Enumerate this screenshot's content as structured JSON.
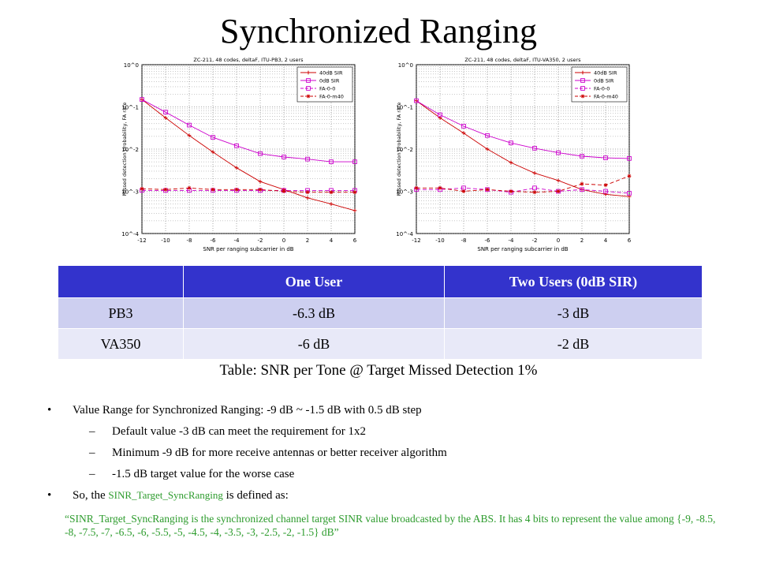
{
  "slide": {
    "title": "Synchronized Ranging"
  },
  "chart_data": [
    {
      "type": "line",
      "title": "ZC-211, 48 codes, deltaF, ITU-PB3, 2 users",
      "xlabel": "SNR per ranging subcarrier in dB",
      "ylabel": "Missed detection probability, FA rate",
      "xlim": [
        -12,
        6
      ],
      "ylim_log10": [
        -4,
        0
      ],
      "x_ticks": [
        "-12",
        "-10",
        "-8",
        "-6",
        "-4",
        "-2",
        "0",
        "2",
        "4",
        "6"
      ],
      "y_ticks": [
        "10^0",
        "10^-1",
        "10^-2",
        "10^-3",
        "10^-4"
      ],
      "log_scale_y": true,
      "grid": true,
      "legend_position": "top-right",
      "x": [
        -12,
        -10,
        -8,
        -6,
        -4,
        -2,
        0,
        2,
        4,
        6
      ],
      "series": [
        {
          "name": "40dB SIR",
          "color": "#cc0000",
          "marker": "plus",
          "dash": "solid",
          "values": [
            0.15,
            0.055,
            0.021,
            0.0085,
            0.0036,
            0.0017,
            0.0011,
            0.0007,
            0.0005,
            0.00035
          ]
        },
        {
          "name": "0dB SIR",
          "color": "#cc00cc",
          "marker": "square",
          "dash": "solid",
          "values": [
            0.15,
            0.075,
            0.037,
            0.019,
            0.012,
            0.0078,
            0.0065,
            0.0058,
            0.005,
            0.005
          ]
        },
        {
          "name": "FA-0-0",
          "color": "#cc00cc",
          "marker": "square",
          "dash": "dashed",
          "values": [
            0.00105,
            0.00105,
            0.00105,
            0.00105,
            0.00105,
            0.00105,
            0.00105,
            0.00105,
            0.00105,
            0.00105
          ]
        },
        {
          "name": "FA-0-m40",
          "color": "#cc0000",
          "marker": "star",
          "dash": "dashed",
          "values": [
            0.00115,
            0.0011,
            0.0012,
            0.0011,
            0.0011,
            0.0011,
            0.001,
            0.00095,
            0.00095,
            0.00095
          ]
        }
      ]
    },
    {
      "type": "line",
      "title": "ZC-211, 48 codes, deltaF, ITU-VA350, 2 users",
      "xlabel": "SNR per ranging subcarrier in dB",
      "ylabel": "Missed detection probability, FA rate",
      "xlim": [
        -12,
        6
      ],
      "ylim_log10": [
        -4,
        0
      ],
      "x_ticks": [
        "-12",
        "-10",
        "-8",
        "-6",
        "-4",
        "-2",
        "0",
        "2",
        "4",
        "6"
      ],
      "y_ticks": [
        "10^0",
        "10^-1",
        "10^-2",
        "10^-3",
        "10^-4"
      ],
      "log_scale_y": true,
      "grid": true,
      "legend_position": "top-right",
      "x": [
        -12,
        -10,
        -8,
        -6,
        -4,
        -2,
        0,
        2,
        4,
        6
      ],
      "series": [
        {
          "name": "40dB SIR",
          "color": "#cc0000",
          "marker": "plus",
          "dash": "solid",
          "values": [
            0.14,
            0.055,
            0.024,
            0.01,
            0.0048,
            0.0027,
            0.0018,
            0.0011,
            0.00085,
            0.00075
          ]
        },
        {
          "name": "0dB SIR",
          "color": "#cc00cc",
          "marker": "square",
          "dash": "solid",
          "values": [
            0.14,
            0.065,
            0.035,
            0.021,
            0.014,
            0.0105,
            0.0082,
            0.0068,
            0.0062,
            0.006
          ]
        },
        {
          "name": "FA-0-0",
          "color": "#cc00cc",
          "marker": "square",
          "dash": "dashed",
          "values": [
            0.0011,
            0.0011,
            0.0012,
            0.0011,
            0.00095,
            0.0012,
            0.001,
            0.0011,
            0.001,
            0.0009
          ]
        },
        {
          "name": "FA-0-m40",
          "color": "#cc0000",
          "marker": "star",
          "dash": "dashed",
          "values": [
            0.0012,
            0.0012,
            0.001,
            0.0011,
            0.001,
            0.00095,
            0.001,
            0.0015,
            0.0014,
            0.0023
          ]
        }
      ]
    }
  ],
  "table": {
    "headers": [
      "",
      "One User",
      "Two Users (0dB SIR)"
    ],
    "rows": [
      [
        "PB3",
        "-6.3 dB",
        "-3 dB"
      ],
      [
        "VA350",
        "-6 dB",
        "-2 dB"
      ]
    ],
    "header_color": "#3333cc",
    "row_colors": [
      "#cdcff0",
      "#e8e9f8"
    ]
  },
  "caption": "Table: SNR per Tone @ Target Missed Detection 1%",
  "bullets": {
    "b1": "Value Range for Synchronized Ranging: -9 dB ~ -1.5 dB with 0.5 dB step",
    "sub1": "Default value -3 dB can meet the requirement for 1x2",
    "sub2": "Minimum -9 dB for more receive antennas or better receiver algorithm",
    "sub3": "-1.5 dB target value for the worse case",
    "b2_prefix": "So, the",
    "b2_param": "SINR_Target_SyncRanging",
    "b2_suffix": "is defined as:",
    "quote": "“SINR_Target_SyncRanging is the synchronized channel target SINR value broadcasted by the ABS. It has 4 bits to represent the value among {-9, -8.5, -8, -7.5, -7, -6.5, -6, -5.5, -5, -4.5, -4, -3.5, -3, -2.5, -2, -1.5} dB”",
    "bullet_glyph": "•",
    "dash_glyph": "–"
  },
  "colors": {
    "green_text": "#2c9b2c"
  }
}
